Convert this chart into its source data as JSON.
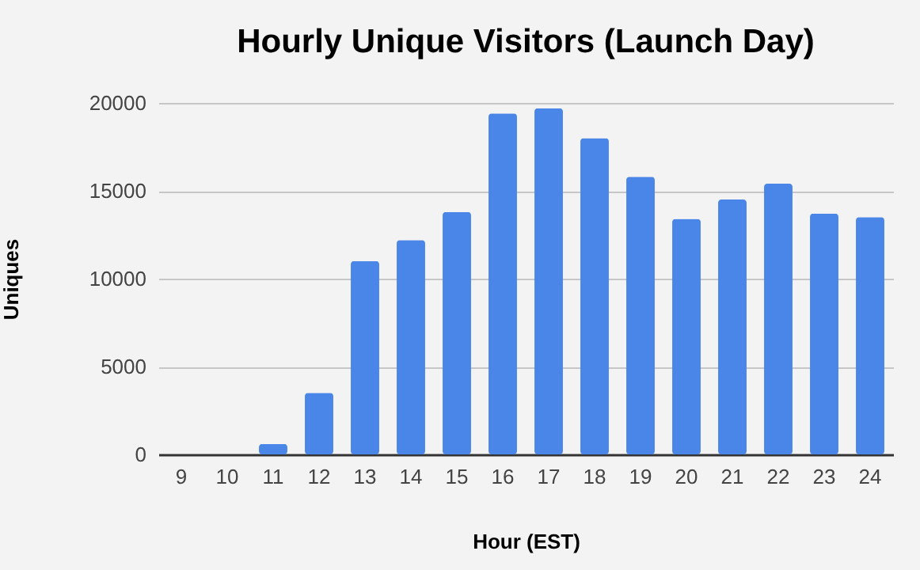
{
  "chart_data": {
    "type": "bar",
    "title": "Hourly Unique Visitors (Launch Day)",
    "xlabel": "Hour (EST)",
    "ylabel": "Uniques",
    "categories": [
      "9",
      "10",
      "11",
      "12",
      "13",
      "14",
      "15",
      "16",
      "17",
      "18",
      "19",
      "20",
      "21",
      "22",
      "23",
      "24"
    ],
    "values": [
      0,
      0,
      600,
      3500,
      11000,
      12200,
      13800,
      19400,
      19700,
      18000,
      15800,
      13400,
      14500,
      15400,
      13700,
      13500
    ],
    "color": "#4a86e8",
    "ylim": [
      0,
      20000
    ],
    "yticks": [
      0,
      5000,
      10000,
      15000,
      20000
    ],
    "grid": "y"
  }
}
